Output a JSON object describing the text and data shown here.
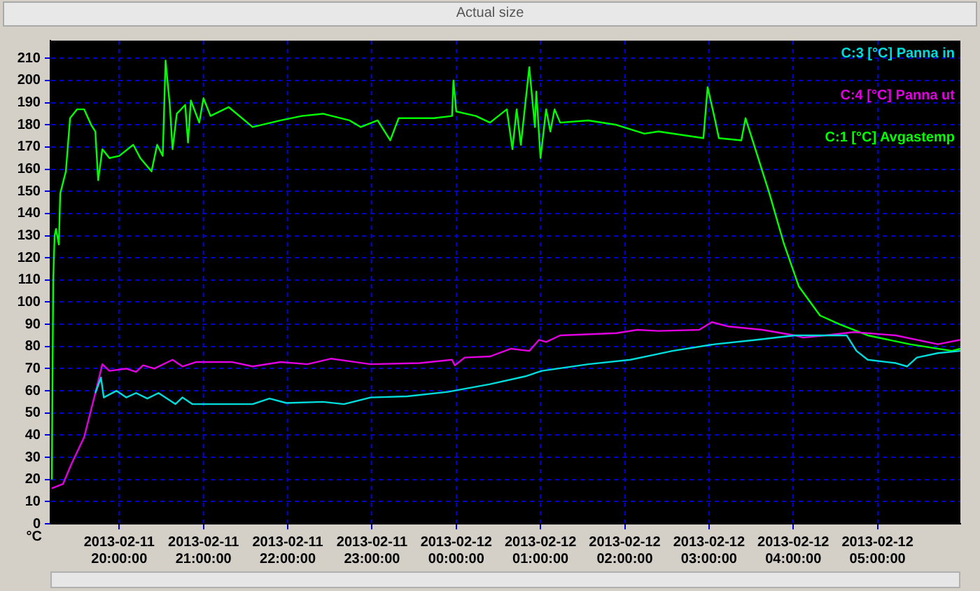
{
  "chart_data": {
    "type": "line",
    "ylabel": "°C",
    "annotations": [
      "Actual size"
    ],
    "xlim": [
      "2013-02-11T19:11",
      "2013-02-12T05:59"
    ],
    "ylim": [
      0,
      218
    ],
    "xticks": [
      {
        "value": "2013-02-11T20:00",
        "label": "2013-02-11 20:00:00"
      },
      {
        "value": "2013-02-11T21:00",
        "label": "2013-02-11 21:00:00"
      },
      {
        "value": "2013-02-11T22:00",
        "label": "2013-02-11 22:00:00"
      },
      {
        "value": "2013-02-11T23:00",
        "label": "2013-02-11 23:00:00"
      },
      {
        "value": "2013-02-12T00:00",
        "label": "2013-02-12 00:00:00"
      },
      {
        "value": "2013-02-12T01:00",
        "label": "2013-02-12 01:00:00"
      },
      {
        "value": "2013-02-12T02:00",
        "label": "2013-02-12 02:00:00"
      },
      {
        "value": "2013-02-12T03:00",
        "label": "2013-02-12 03:00:00"
      },
      {
        "value": "2013-02-12T04:00",
        "label": "2013-02-12 04:00:00"
      },
      {
        "value": "2013-02-12T05:00",
        "label": "2013-02-12 05:00:00"
      }
    ],
    "yticks": [
      0,
      10,
      20,
      30,
      40,
      50,
      60,
      70,
      80,
      90,
      100,
      110,
      120,
      130,
      140,
      150,
      160,
      170,
      180,
      190,
      200,
      210
    ],
    "grid": true,
    "legend": "top right",
    "marker": "none",
    "line_style": "solid",
    "series": [
      {
        "name": "C:3 [°C] Panna in",
        "color": "#00dcdc",
        "x": [
          "2013-02-11T19:43",
          "2013-02-11T19:47",
          "2013-02-11T19:49",
          "2013-02-11T19:58",
          "2013-02-11T20:05",
          "2013-02-11T20:12",
          "2013-02-11T20:20",
          "2013-02-11T20:28",
          "2013-02-11T20:40",
          "2013-02-11T20:45",
          "2013-02-11T20:52",
          "2013-02-11T21:10",
          "2013-02-11T21:35",
          "2013-02-11T21:47",
          "2013-02-11T21:59",
          "2013-02-11T22:25",
          "2013-02-11T22:40",
          "2013-02-11T22:59",
          "2013-02-11T23:25",
          "2013-02-11T23:54",
          "2013-02-12T00:24",
          "2013-02-12T00:49",
          "2013-02-12T01:01",
          "2013-02-12T01:34",
          "2013-02-12T02:04",
          "2013-02-12T02:34",
          "2013-02-12T03:04",
          "2013-02-12T03:34",
          "2013-02-12T04:01",
          "2013-02-12T04:33",
          "2013-02-12T04:38",
          "2013-02-12T04:45",
          "2013-02-12T04:53",
          "2013-02-12T05:13",
          "2013-02-12T05:21",
          "2013-02-12T05:28",
          "2013-02-12T05:43",
          "2013-02-12T05:59"
        ],
        "values": [
          59,
          66,
          57,
          60,
          57,
          59,
          56.5,
          59,
          54,
          57,
          54,
          54,
          54,
          56.5,
          54.5,
          55,
          54,
          57,
          57.5,
          59.5,
          63,
          66.5,
          69,
          72,
          74,
          78,
          81,
          83,
          85,
          85,
          85,
          78,
          74,
          72.5,
          71,
          75,
          77,
          78
        ]
      },
      {
        "name": "C:4 [°C] Panna ut",
        "color": "#e000e0",
        "x": [
          "2013-02-11T19:12",
          "2013-02-11T19:20",
          "2013-02-11T19:26",
          "2013-02-11T19:35",
          "2013-02-11T19:43",
          "2013-02-11T19:48",
          "2013-02-11T19:53",
          "2013-02-11T20:05",
          "2013-02-11T20:12",
          "2013-02-11T20:17",
          "2013-02-11T20:25",
          "2013-02-11T20:38",
          "2013-02-11T20:45",
          "2013-02-11T20:55",
          "2013-02-11T21:20",
          "2013-02-11T21:35",
          "2013-02-11T21:55",
          "2013-02-11T22:14",
          "2013-02-11T22:31",
          "2013-02-11T22:59",
          "2013-02-11T23:34",
          "2013-02-11T23:57",
          "2013-02-11T23:59",
          "2013-02-12T00:06",
          "2013-02-12T00:24",
          "2013-02-12T00:39",
          "2013-02-12T00:52",
          "2013-02-12T00:59",
          "2013-02-12T01:04",
          "2013-02-12T01:14",
          "2013-02-12T01:54",
          "2013-02-12T02:09",
          "2013-02-12T02:24",
          "2013-02-12T02:53",
          "2013-02-12T03:02",
          "2013-02-12T03:14",
          "2013-02-12T03:38",
          "2013-02-12T04:01",
          "2013-02-12T04:07",
          "2013-02-12T04:23",
          "2013-02-12T04:43",
          "2013-02-12T05:13",
          "2013-02-12T05:43",
          "2013-02-12T05:59"
        ],
        "values": [
          16,
          18,
          27,
          39,
          59,
          72,
          69,
          70,
          68.5,
          71.5,
          70,
          74,
          71,
          73,
          73,
          71,
          73,
          72,
          74.5,
          72,
          72.5,
          74,
          71.5,
          75,
          75.5,
          79,
          78,
          83,
          82,
          85,
          86,
          87.5,
          87,
          87.5,
          91,
          89,
          87.5,
          85,
          84,
          85,
          86.5,
          85,
          81,
          83
        ]
      },
      {
        "name": "C:1 [°C] Avgastemp",
        "color": "#00ff00",
        "x": [
          "2013-02-11T19:12",
          "2013-02-11T19:13",
          "2013-02-11T19:14",
          "2013-02-11T19:15",
          "2013-02-11T19:17",
          "2013-02-11T19:18",
          "2013-02-11T19:22",
          "2013-02-11T19:25",
          "2013-02-11T19:30",
          "2013-02-11T19:35",
          "2013-02-11T19:40",
          "2013-02-11T19:43",
          "2013-02-11T19:44",
          "2013-02-11T19:45",
          "2013-02-11T19:48",
          "2013-02-11T19:53",
          "2013-02-11T20:00",
          "2013-02-11T20:10",
          "2013-02-11T20:15",
          "2013-02-11T20:23",
          "2013-02-11T20:27",
          "2013-02-11T20:31",
          "2013-02-11T20:33",
          "2013-02-11T20:36",
          "2013-02-11T20:38",
          "2013-02-11T20:41",
          "2013-02-11T20:47",
          "2013-02-11T20:49",
          "2013-02-11T20:51",
          "2013-02-11T20:57",
          "2013-02-11T21:00",
          "2013-02-11T21:05",
          "2013-02-11T21:18",
          "2013-02-11T21:35",
          "2013-02-11T21:55",
          "2013-02-11T22:10",
          "2013-02-11T22:25",
          "2013-02-11T22:44",
          "2013-02-11T22:52",
          "2013-02-11T23:04",
          "2013-02-11T23:13",
          "2013-02-11T23:19",
          "2013-02-11T23:34",
          "2013-02-11T23:44",
          "2013-02-11T23:57",
          "2013-02-11T23:58",
          "2013-02-12T00:00",
          "2013-02-12T00:14",
          "2013-02-12T00:24",
          "2013-02-12T00:36",
          "2013-02-12T00:40",
          "2013-02-12T00:43",
          "2013-02-12T00:46",
          "2013-02-12T00:52",
          "2013-02-12T00:56",
          "2013-02-12T00:57",
          "2013-02-12T01:00",
          "2013-02-12T01:04",
          "2013-02-12T01:07",
          "2013-02-12T01:10",
          "2013-02-12T01:14",
          "2013-02-12T01:34",
          "2013-02-12T01:54",
          "2013-02-12T02:14",
          "2013-02-12T02:24",
          "2013-02-12T02:56",
          "2013-02-12T02:59",
          "2013-02-12T03:04",
          "2013-02-12T03:07",
          "2013-02-12T03:23",
          "2013-02-12T03:26",
          "2013-02-12T03:34",
          "2013-02-12T03:43",
          "2013-02-12T03:53",
          "2013-02-12T04:04",
          "2013-02-12T04:19",
          "2013-02-12T04:33",
          "2013-02-12T04:53",
          "2013-02-12T05:23",
          "2013-02-12T05:53",
          "2013-02-12T05:59"
        ],
        "values": [
          20,
          110,
          130,
          133,
          126,
          149,
          159,
          183,
          187,
          187,
          180,
          177,
          166,
          155,
          169,
          165,
          166,
          171,
          165,
          159,
          171,
          166,
          209,
          189,
          169,
          185,
          189,
          172,
          191,
          181,
          192,
          184,
          188,
          179,
          182,
          184,
          185,
          182,
          179,
          182,
          173,
          183,
          183,
          183,
          184,
          200,
          186,
          184,
          181,
          187,
          169,
          187,
          171,
          206,
          179,
          195,
          165,
          187,
          177,
          187,
          181,
          182,
          180,
          176,
          177,
          174,
          197,
          183,
          174,
          173,
          183,
          167,
          149,
          127,
          107,
          94,
          90,
          85,
          81,
          78,
          79
        ]
      }
    ]
  }
}
